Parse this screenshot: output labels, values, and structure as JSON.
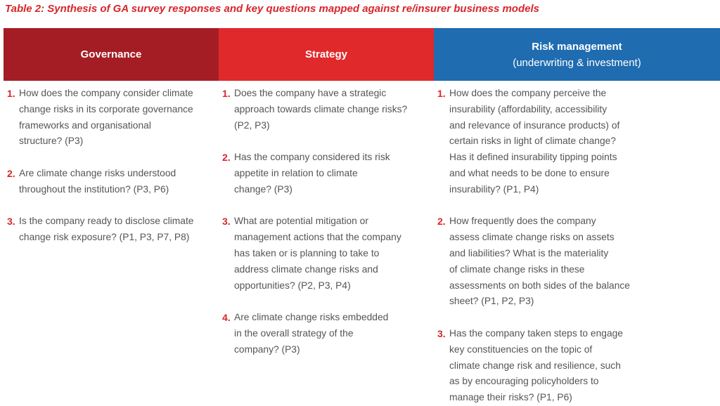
{
  "title": "Table 2: Synthesis of GA survey responses and key questions mapped against re/insurer business models",
  "columns": [
    {
      "header": [
        "Governance"
      ],
      "items": [
        {
          "number": "1.",
          "lines": [
            "How does the company consider climate",
            "change risks in its corporate governance",
            "frameworks and organisational",
            "structure? (P3)"
          ]
        },
        {
          "number": "2.",
          "lines": [
            "Are climate change risks understood",
            "throughout the institution? (P3, P6)"
          ]
        },
        {
          "number": "3.",
          "lines": [
            "Is the company ready to disclose climate",
            "change risk exposure? (P1, P3, P7, P8)"
          ]
        }
      ]
    },
    {
      "header": [
        "Strategy"
      ],
      "items": [
        {
          "number": "1.",
          "lines": [
            "Does the company have a strategic",
            "approach towards climate change risks?",
            "(P2, P3)"
          ]
        },
        {
          "number": "2.",
          "lines": [
            "Has the company considered its risk",
            "appetite in relation to climate",
            "change? (P3)"
          ]
        },
        {
          "number": "3.",
          "lines": [
            "What are potential mitigation or",
            "management actions that the company",
            "has taken or is planning to take to",
            "address climate change risks and",
            "opportunities? (P2, P3, P4)"
          ]
        },
        {
          "number": "4.",
          "lines": [
            "Are climate change risks embedded",
            "in the overall strategy of the",
            "company? (P3)"
          ]
        }
      ]
    },
    {
      "header": [
        "Risk management",
        "(underwriting & investment)"
      ],
      "items": [
        {
          "number": "1.",
          "lines": [
            "How does the company perceive the",
            "insurability (affordability, accessibility",
            "and relevance of insurance products) of",
            "certain risks in light of climate change?",
            "Has it defined insurability tipping points",
            "and what needs to be done to ensure",
            "insurability? (P1, P4)"
          ]
        },
        {
          "number": "2.",
          "lines": [
            "How frequently does the company",
            "assess climate change risks on assets",
            "and liabilities?  What is the materiality",
            "of climate change risks in these",
            "assessments on both sides of the balance",
            "sheet? (P1, P2, P3)"
          ]
        },
        {
          "number": "3.",
          "lines": [
            "Has the company taken steps to engage",
            "key constituencies on the topic of",
            "climate change risk and resilience, such",
            "as by encouraging policyholders to",
            "manage their risks? (P1, P6)"
          ]
        }
      ]
    }
  ]
}
